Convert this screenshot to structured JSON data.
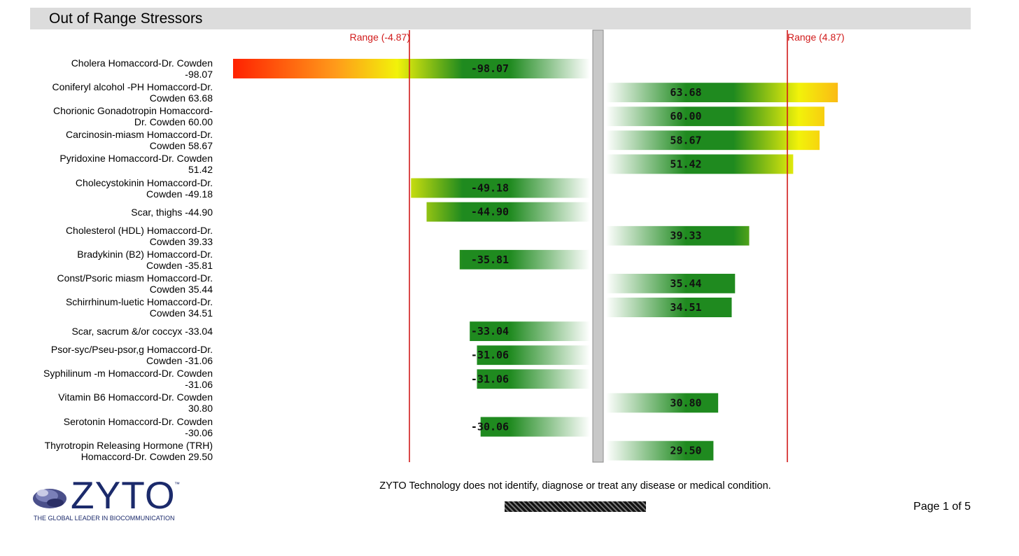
{
  "page": {
    "title": "Out of Range Stressors",
    "disclaimer": "ZYTO Technology does not identify, diagnose or treat any disease or medical condition.",
    "page_number": "Page 1 of 5"
  },
  "logo": {
    "brand": "ZYTO",
    "trademark": "™",
    "tagline": "THE GLOBAL LEADER IN BIOCOMMUNICATION"
  },
  "chart_data": {
    "type": "bar",
    "title": "Out of Range Stressors",
    "range_low_label": "Range (-4.87)",
    "range_high_label": "Range (4.87)",
    "range": [
      -4.87,
      4.87
    ],
    "max_value": 100,
    "colors": {
      "range_line": "#d11a1a",
      "divider": "#c8c8c8",
      "green": "#1f8a1f",
      "yellow": "#f2f20a",
      "orange": "#ff9a1a",
      "red": "#ff1a00"
    },
    "categories": [
      "Cholera Homaccord-Dr. Cowden\n-98.07",
      "Coniferyl alcohol -PH Homaccord-Dr.\nCowden 63.68",
      "Chorionic Gonadotropin Homaccord-\nDr. Cowden 60.00",
      "Carcinosin-miasm Homaccord-Dr.\nCowden 58.67",
      "Pyridoxine Homaccord-Dr. Cowden\n51.42",
      "Cholecystokinin Homaccord-Dr.\nCowden -49.18",
      "Scar, thighs -44.90",
      "Cholesterol (HDL) Homaccord-Dr.\nCowden 39.33",
      "Bradykinin (B2) Homaccord-Dr.\nCowden -35.81",
      "Const/Psoric miasm Homaccord-Dr.\nCowden 35.44",
      "Schirrhinum-luetic Homaccord-Dr.\nCowden 34.51",
      "Scar, sacrum &/or coccyx -33.04",
      "Psor-syc/Pseu-psor,g Homaccord-Dr.\nCowden -31.06",
      "Syphilinum -m Homaccord-Dr. Cowden\n-31.06",
      "Vitamin B6 Homaccord-Dr. Cowden\n30.80",
      "Serotonin Homaccord-Dr. Cowden\n-30.06",
      "Thyrotropin Releasing Hormone (TRH)\nHomaccord-Dr. Cowden 29.50"
    ],
    "values": [
      -98.07,
      63.68,
      60.0,
      58.67,
      51.42,
      -49.18,
      -44.9,
      39.33,
      -35.81,
      35.44,
      34.51,
      -33.04,
      -31.06,
      -31.06,
      30.8,
      -30.06,
      29.5
    ],
    "value_labels": [
      "-98.07",
      "63.68",
      "60.00",
      "58.67",
      "51.42",
      "-49.18",
      "-44.90",
      "39.33",
      "-35.81",
      "35.44",
      "34.51",
      "-33.04",
      "-31.06",
      "-31.06",
      "30.80",
      "-30.06",
      "29.50"
    ]
  }
}
